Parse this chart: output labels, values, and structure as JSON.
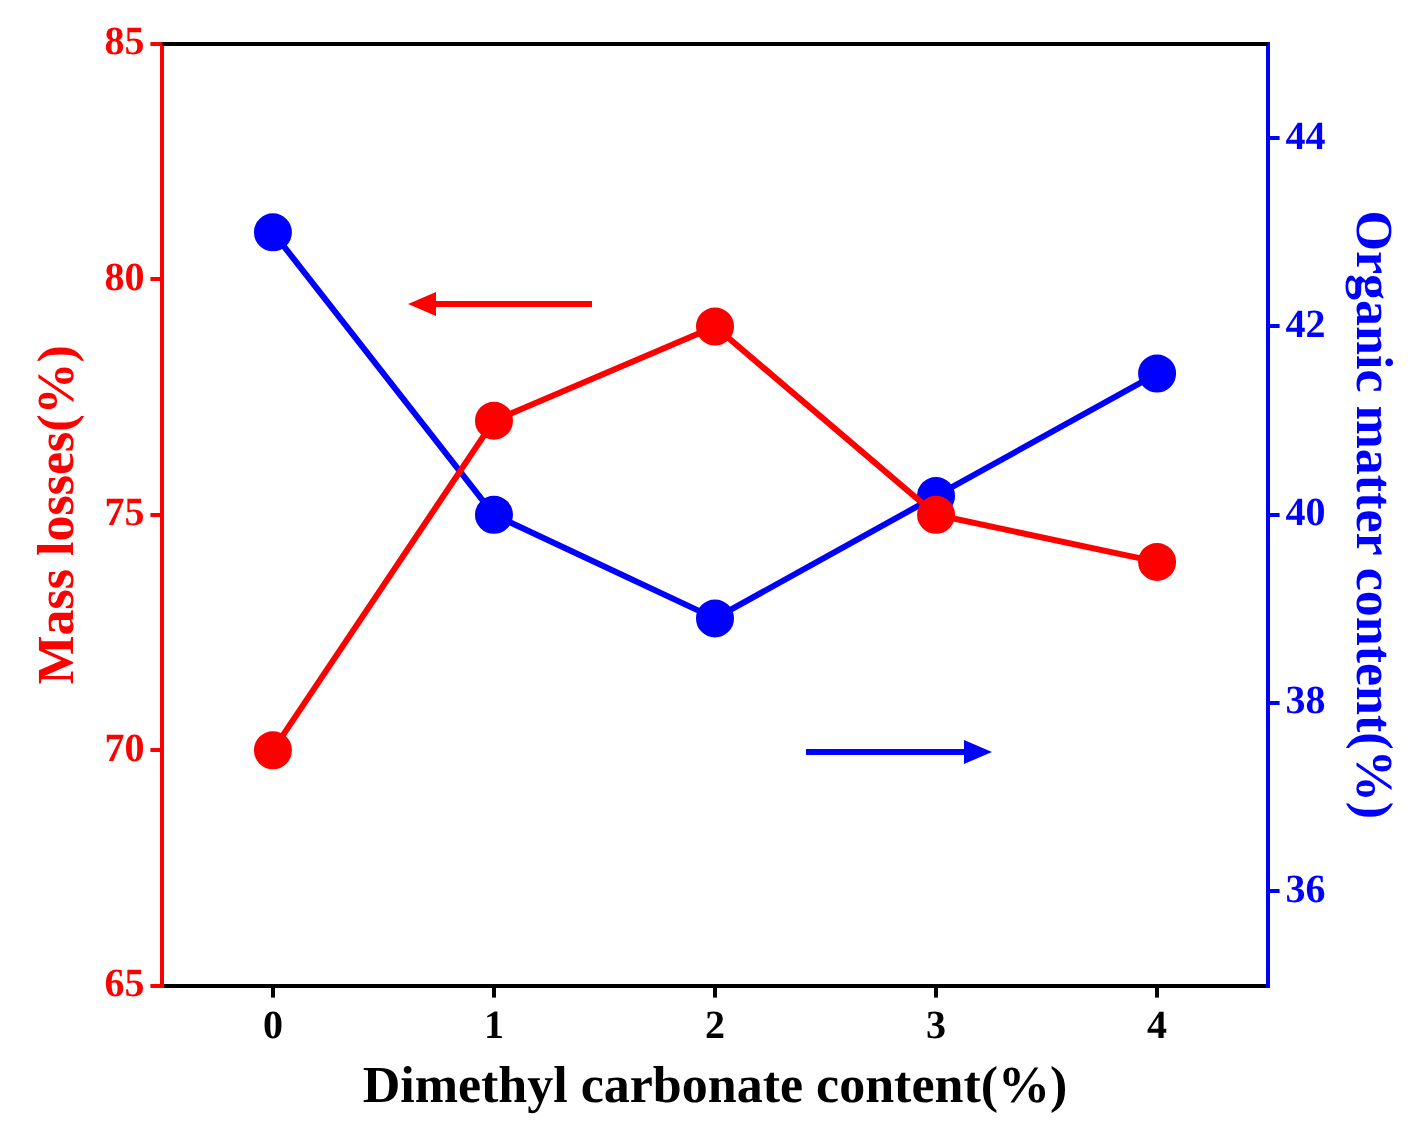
{
  "chart_data": {
    "type": "line",
    "xlabel": "Dimethyl carbonate content(%)",
    "ylabel": "Mass losses(%)",
    "y2label": "Organic matter content(%)",
    "x": [
      0,
      1,
      2,
      3,
      4
    ],
    "series": [
      {
        "name": null,
        "color": "#ff0000",
        "values": [
          70,
          77,
          79,
          75,
          74
        ]
      },
      {
        "name": null,
        "color": "#0000ff",
        "values": [
          43,
          40,
          38.9,
          40.2,
          41.5
        ],
        "axis": "y2"
      }
    ],
    "xlim": [
      -0.5,
      4.5
    ],
    "xticks": [
      0,
      1,
      2,
      3,
      4
    ],
    "ylim": [
      65,
      85
    ],
    "yticks": [
      65,
      70,
      75,
      80,
      85
    ],
    "y2lim": [
      35,
      45
    ],
    "y2ticks": [
      36,
      38,
      40,
      42,
      44
    ],
    "marker": "circle",
    "grid": false,
    "legend": false
  }
}
